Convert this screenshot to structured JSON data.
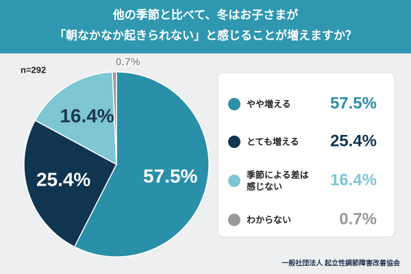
{
  "chart_data": {
    "type": "pie",
    "title": [
      "他の季節と比べて、冬はお子さまが",
      "「朝なかなか起きられない」と感じることが増えますか？"
    ],
    "sample_size": "n=292",
    "categories": [
      "やや増える",
      "とても増える",
      "季節による差は\n感じない",
      "わからない"
    ],
    "values": [
      57.5,
      25.4,
      16.4,
      0.7
    ],
    "value_labels": [
      "57.5%",
      "25.4%",
      "16.4%",
      "0.7%"
    ],
    "colors": [
      "#2a8fa8",
      "#0f3550",
      "#7ec6d3",
      "#9a9a9a"
    ],
    "source": "一般社団法人 起立性調節障害改善協会"
  }
}
